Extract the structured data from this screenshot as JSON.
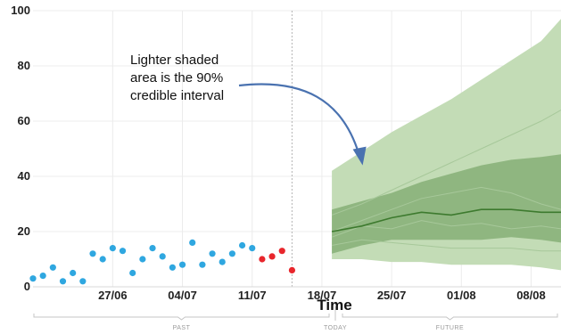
{
  "chart_data": {
    "type": "line",
    "title": "",
    "xlabel": "Time",
    "ylabel": "",
    "ylim": [
      0,
      100
    ],
    "yticks": [
      "0",
      "20",
      "40",
      "60",
      "80",
      "100"
    ],
    "x_range": [
      "2021-06-19",
      "2021-08-11"
    ],
    "xticks": [
      {
        "label": "27/06",
        "date": "2021-06-27"
      },
      {
        "label": "04/07",
        "date": "2021-07-04"
      },
      {
        "label": "11/07",
        "date": "2021-07-11"
      },
      {
        "label": "18/07",
        "date": "2021-07-18"
      },
      {
        "label": "25/07",
        "date": "2021-07-25"
      },
      {
        "label": "01/08",
        "date": "2021-08-01"
      },
      {
        "label": "08/08",
        "date": "2021-08-08"
      }
    ],
    "today_date": "2021-07-19",
    "today_marker_date": "2021-07-15",
    "periods": {
      "past": "PAST",
      "today": "TODAY",
      "future": "FUTURE"
    },
    "annotation": {
      "lines": [
        "Lighter shaded",
        "area is the 90%",
        "credible interval"
      ],
      "points_to": {
        "date": "2021-07-22",
        "y": 44
      }
    },
    "series": [
      {
        "role": "observed",
        "color": "#2fa7e0",
        "points": [
          [
            "2021-06-19",
            3
          ],
          [
            "2021-06-20",
            4
          ],
          [
            "2021-06-21",
            7
          ],
          [
            "2021-06-22",
            2
          ],
          [
            "2021-06-23",
            5
          ],
          [
            "2021-06-24",
            2
          ],
          [
            "2021-06-25",
            12
          ],
          [
            "2021-06-26",
            10
          ],
          [
            "2021-06-27",
            14
          ],
          [
            "2021-06-28",
            13
          ],
          [
            "2021-06-29",
            5
          ],
          [
            "2021-06-30",
            10
          ],
          [
            "2021-07-01",
            14
          ],
          [
            "2021-07-02",
            11
          ],
          [
            "2021-07-03",
            7
          ],
          [
            "2021-07-04",
            8
          ],
          [
            "2021-07-05",
            16
          ],
          [
            "2021-07-06",
            8
          ],
          [
            "2021-07-07",
            12
          ],
          [
            "2021-07-08",
            9
          ],
          [
            "2021-07-09",
            12
          ],
          [
            "2021-07-10",
            15
          ],
          [
            "2021-07-11",
            14
          ]
        ]
      },
      {
        "role": "recent observed",
        "color": "#e8262c",
        "points": [
          [
            "2021-07-12",
            10
          ],
          [
            "2021-07-13",
            11
          ],
          [
            "2021-07-14",
            13
          ],
          [
            "2021-07-15",
            6
          ]
        ]
      }
    ],
    "forecast": {
      "dates": [
        "2021-07-19",
        "2021-07-22",
        "2021-07-25",
        "2021-07-28",
        "2021-07-31",
        "2021-08-03",
        "2021-08-06",
        "2021-08-09",
        "2021-08-11"
      ],
      "median": [
        20,
        22,
        25,
        27,
        26,
        28,
        28,
        27,
        27
      ],
      "inner_interval": {
        "color": "#7daa6e",
        "low": [
          12,
          15,
          17,
          17,
          17,
          17,
          18,
          17,
          16
        ],
        "high": [
          28,
          31,
          34,
          38,
          41,
          44,
          46,
          47,
          48
        ]
      },
      "outer_interval_90": {
        "color": "#c3dcb6",
        "low": [
          10,
          10,
          9,
          9,
          8,
          8,
          8,
          7,
          6
        ],
        "high": [
          42,
          49,
          56,
          62,
          68,
          75,
          82,
          89,
          97
        ]
      },
      "sample_paths": [
        {
          "color": "#a7c89a",
          "values": [
            26,
            30,
            35,
            40,
            45,
            50,
            55,
            60,
            64
          ]
        },
        {
          "color": "#a7c89a",
          "values": [
            20,
            24,
            28,
            32,
            34,
            36,
            34,
            30,
            28
          ]
        },
        {
          "color": "#a7c89a",
          "values": [
            15,
            17,
            16,
            15,
            14,
            14,
            14,
            13,
            13
          ]
        },
        {
          "color": "#a7c89a",
          "values": [
            18,
            22,
            21,
            24,
            22,
            23,
            21,
            22,
            21
          ]
        }
      ],
      "median_color": "#3d7a2e"
    },
    "grid": true
  }
}
